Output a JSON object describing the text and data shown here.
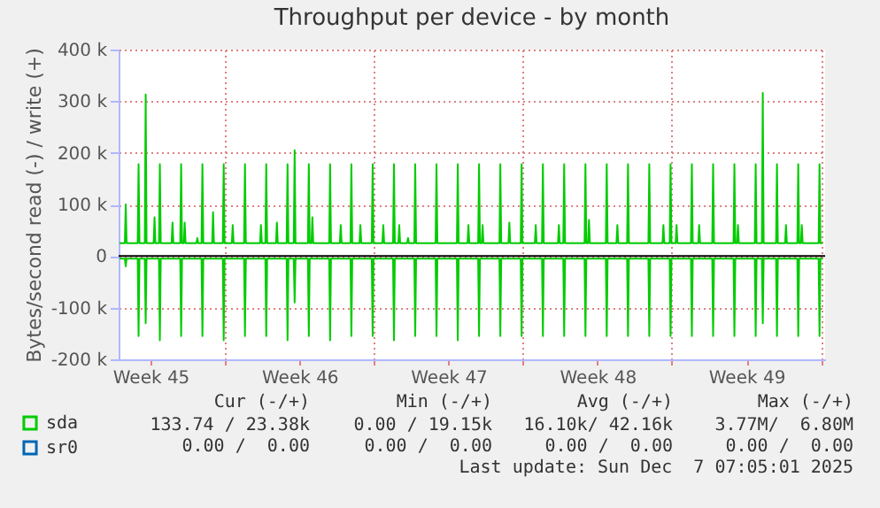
{
  "chart_data": {
    "type": "line",
    "title": "Throughput per device - by month",
    "ylabel": "Bytes/second read (-) / write (+)",
    "xlim": [
      "2025-11-05T00:00",
      "2025-12-08T04:48"
    ],
    "xticks": [
      {
        "value": "2025-11-06T12:00",
        "label": "Week 45"
      },
      {
        "value": "2025-11-10T00:00",
        "label": null
      },
      {
        "value": "2025-11-13T12:00",
        "label": "Week 46"
      },
      {
        "value": "2025-11-17T00:00",
        "label": null
      },
      {
        "value": "2025-11-20T12:00",
        "label": "Week 47"
      },
      {
        "value": "2025-11-24T00:00",
        "label": null
      },
      {
        "value": "2025-11-27T12:00",
        "label": "Week 48"
      },
      {
        "value": "2025-12-01T00:00",
        "label": null
      },
      {
        "value": "2025-12-04T12:00",
        "label": "Week 49"
      },
      {
        "value": "2025-12-08T00:00",
        "label": null
      }
    ],
    "ylim": [
      -200000,
      400000
    ],
    "yticks": [
      {
        "value": -200000,
        "label": "-200 k"
      },
      {
        "value": -100000,
        "label": "-100 k"
      },
      0,
      {
        "value": 100000,
        "label": "100 k"
      },
      {
        "value": 200000,
        "label": "200 k"
      },
      {
        "value": 300000,
        "label": "300 k"
      },
      {
        "value": 400000,
        "label": "400 k"
      }
    ],
    "grid": true,
    "legend": "bottom left",
    "line_style": "solid",
    "ref_lines": [
      {
        "axis": "y",
        "value": 0,
        "color": "#000000"
      }
    ],
    "series": [
      {
        "name": "sda",
        "color": "#00cc00",
        "x": [
          "2025-11-05T01:00",
          "2025-11-05T07:00",
          "2025-11-05T08:00",
          "2025-11-05T09:00",
          "2025-11-05T21:30",
          "2025-11-05T22:30",
          "2025-11-05T23:30",
          "2025-11-06T05:30",
          "2025-11-06T06:30",
          "2025-11-06T07:30",
          "2025-11-06T15:30",
          "2025-11-06T16:30",
          "2025-11-06T17:30",
          "2025-11-06T21:30",
          "2025-11-06T22:30",
          "2025-11-06T23:30",
          "2025-11-07T11:45",
          "2025-11-07T12:45",
          "2025-11-07T13:45",
          "2025-11-07T21:30",
          "2025-11-07T22:30",
          "2025-11-07T23:30",
          "2025-11-08T01:30",
          "2025-11-08T02:30",
          "2025-11-08T03:30",
          "2025-11-08T15:45",
          "2025-11-08T16:45",
          "2025-11-08T17:45",
          "2025-11-08T21:30",
          "2025-11-08T22:30",
          "2025-11-08T23:30",
          "2025-11-09T09:30",
          "2025-11-09T10:30",
          "2025-11-09T11:30",
          "2025-11-09T21:30",
          "2025-11-09T22:30",
          "2025-11-09T23:30",
          "2025-11-10T07:40",
          "2025-11-10T08:40",
          "2025-11-10T09:40",
          "2025-11-10T21:30",
          "2025-11-10T22:30",
          "2025-11-10T23:30",
          "2025-11-11T15:30",
          "2025-11-11T16:30",
          "2025-11-11T17:30",
          "2025-11-11T21:30",
          "2025-11-11T22:30",
          "2025-11-11T23:30",
          "2025-11-12T09:30",
          "2025-11-12T10:30",
          "2025-11-12T11:30",
          "2025-11-12T21:30",
          "2025-11-12T22:30",
          "2025-11-12T23:30",
          "2025-11-13T05:30",
          "2025-11-13T06:30",
          "2025-11-13T07:30",
          "2025-11-13T21:30",
          "2025-11-13T22:30",
          "2025-11-13T23:30",
          "2025-11-14T01:30",
          "2025-11-14T02:30",
          "2025-11-14T03:30",
          "2025-11-14T21:30",
          "2025-11-14T22:30",
          "2025-11-14T23:30",
          "2025-11-15T09:30",
          "2025-11-15T10:30",
          "2025-11-15T11:30",
          "2025-11-15T21:30",
          "2025-11-15T22:30",
          "2025-11-15T23:30",
          "2025-11-16T07:40",
          "2025-11-16T08:40",
          "2025-11-16T09:40",
          "2025-11-16T21:30",
          "2025-11-16T22:30",
          "2025-11-16T23:30",
          "2025-11-17T09:30",
          "2025-11-17T10:30",
          "2025-11-17T11:30",
          "2025-11-17T21:30",
          "2025-11-17T22:30",
          "2025-11-17T23:30",
          "2025-11-18T03:30",
          "2025-11-18T04:30",
          "2025-11-18T05:30",
          "2025-11-18T13:25",
          "2025-11-18T14:25",
          "2025-11-18T15:25",
          "2025-11-18T21:30",
          "2025-11-18T22:30",
          "2025-11-18T23:30",
          "2025-11-19T21:30",
          "2025-11-19T22:30",
          "2025-11-19T23:30",
          "2025-11-20T21:30",
          "2025-11-20T22:30",
          "2025-11-20T23:30",
          "2025-11-21T09:30",
          "2025-11-21T10:30",
          "2025-11-21T11:30",
          "2025-11-21T21:30",
          "2025-11-21T22:30",
          "2025-11-21T23:30",
          "2025-11-22T01:30",
          "2025-11-22T02:30",
          "2025-11-22T03:30",
          "2025-11-22T21:30",
          "2025-11-22T22:30",
          "2025-11-22T23:30",
          "2025-11-23T07:40",
          "2025-11-23T08:40",
          "2025-11-23T09:40",
          "2025-11-23T21:30",
          "2025-11-23T22:30",
          "2025-11-23T23:30",
          "2025-11-24T13:25",
          "2025-11-24T14:25",
          "2025-11-24T15:25",
          "2025-11-24T21:30",
          "2025-11-24T22:30",
          "2025-11-24T23:30",
          "2025-11-25T15:30",
          "2025-11-25T16:30",
          "2025-11-25T17:30",
          "2025-11-25T21:30",
          "2025-11-25T22:30",
          "2025-11-25T23:30",
          "2025-11-26T21:30",
          "2025-11-26T22:30",
          "2025-11-26T23:30",
          "2025-11-27T01:30",
          "2025-11-27T02:30",
          "2025-11-27T03:30",
          "2025-11-27T21:30",
          "2025-11-27T22:30",
          "2025-11-27T23:30",
          "2025-11-28T09:30",
          "2025-11-28T10:30",
          "2025-11-28T11:30",
          "2025-11-28T21:30",
          "2025-11-28T22:30",
          "2025-11-28T23:30",
          "2025-11-29T21:30",
          "2025-11-29T22:30",
          "2025-11-29T23:30",
          "2025-11-30T13:25",
          "2025-11-30T14:25",
          "2025-11-30T15:25",
          "2025-11-30T21:30",
          "2025-11-30T22:30",
          "2025-11-30T23:30",
          "2025-12-01T04:15",
          "2025-12-01T05:15",
          "2025-12-01T06:15",
          "2025-12-01T21:30",
          "2025-12-01T22:30",
          "2025-12-01T23:30",
          "2025-12-02T05:45",
          "2025-12-02T06:45",
          "2025-12-02T07:45",
          "2025-12-02T21:30",
          "2025-12-02T22:30",
          "2025-12-02T23:30",
          "2025-12-03T21:30",
          "2025-12-03T22:30",
          "2025-12-03T23:30",
          "2025-12-04T01:30",
          "2025-12-04T02:30",
          "2025-12-04T03:30",
          "2025-12-04T21:30",
          "2025-12-04T22:30",
          "2025-12-04T23:30",
          "2025-12-05T05:30",
          "2025-12-05T06:30",
          "2025-12-05T07:30",
          "2025-12-05T21:30",
          "2025-12-05T22:30",
          "2025-12-05T23:30",
          "2025-12-06T07:40",
          "2025-12-06T08:40",
          "2025-12-06T09:40",
          "2025-12-06T21:30",
          "2025-12-06T22:30",
          "2025-12-06T23:30",
          "2025-12-07T01:30",
          "2025-12-07T02:30",
          "2025-12-07T03:30",
          "2025-12-07T21:30",
          "2025-12-07T22:30",
          "2025-12-07T23:30",
          "2025-12-08T02:00"
        ],
        "values": [
          25000,
          25000,
          100000,
          25000,
          25000,
          178000,
          25000,
          25000,
          313000,
          25000,
          25000,
          75000,
          25000,
          25000,
          178000,
          25000,
          25000,
          65000,
          25000,
          25000,
          178000,
          25000,
          25000,
          65000,
          25000,
          25000,
          35000,
          25000,
          25000,
          178000,
          25000,
          25000,
          85000,
          25000,
          25000,
          178000,
          25000,
          25000,
          60000,
          25000,
          25000,
          178000,
          25000,
          25000,
          60000,
          25000,
          25000,
          178000,
          25000,
          25000,
          65000,
          25000,
          25000,
          178000,
          25000,
          25000,
          205000,
          25000,
          25000,
          178000,
          25000,
          25000,
          75000,
          25000,
          25000,
          178000,
          25000,
          25000,
          60000,
          25000,
          25000,
          178000,
          25000,
          25000,
          60000,
          25000,
          25000,
          178000,
          25000,
          25000,
          60000,
          25000,
          25000,
          178000,
          25000,
          25000,
          60000,
          25000,
          25000,
          35000,
          25000,
          25000,
          178000,
          25000,
          25000,
          178000,
          25000,
          25000,
          178000,
          25000,
          25000,
          60000,
          25000,
          25000,
          178000,
          25000,
          25000,
          60000,
          25000,
          25000,
          178000,
          25000,
          25000,
          65000,
          25000,
          25000,
          178000,
          25000,
          25000,
          60000,
          25000,
          25000,
          178000,
          25000,
          25000,
          60000,
          25000,
          25000,
          178000,
          25000,
          25000,
          178000,
          25000,
          25000,
          70000,
          25000,
          25000,
          178000,
          25000,
          25000,
          60000,
          25000,
          25000,
          178000,
          25000,
          25000,
          178000,
          25000,
          25000,
          60000,
          25000,
          25000,
          178000,
          25000,
          25000,
          60000,
          25000,
          25000,
          178000,
          25000,
          25000,
          60000,
          25000,
          25000,
          178000,
          25000,
          25000,
          178000,
          25000,
          25000,
          60000,
          25000,
          25000,
          178000,
          25000,
          25000,
          316000,
          25000,
          25000,
          178000,
          25000,
          25000,
          60000,
          25000,
          25000,
          178000,
          25000,
          25000,
          60000,
          25000,
          25000,
          178000,
          25000,
          25000
        ]
      },
      {
        "color": "#00cc00",
        "x": [
          "2025-11-05T01:00",
          "2025-11-05T07:00",
          "2025-11-05T08:00",
          "2025-11-05T09:00",
          "2025-11-05T21:30",
          "2025-11-05T22:30",
          "2025-11-05T23:30",
          "2025-11-06T05:30",
          "2025-11-06T06:30",
          "2025-11-06T07:30",
          "2025-11-06T21:30",
          "2025-11-06T22:30",
          "2025-11-06T23:30",
          "2025-11-07T21:30",
          "2025-11-07T22:30",
          "2025-11-07T23:30",
          "2025-11-08T21:30",
          "2025-11-08T22:30",
          "2025-11-08T23:30",
          "2025-11-09T21:30",
          "2025-11-09T22:30",
          "2025-11-09T23:30",
          "2025-11-10T21:30",
          "2025-11-10T22:30",
          "2025-11-10T23:30",
          "2025-11-11T21:30",
          "2025-11-11T22:30",
          "2025-11-11T23:30",
          "2025-11-12T21:30",
          "2025-11-12T22:30",
          "2025-11-12T23:30",
          "2025-11-13T05:30",
          "2025-11-13T06:30",
          "2025-11-13T07:30",
          "2025-11-13T21:30",
          "2025-11-13T22:30",
          "2025-11-13T23:30",
          "2025-11-14T21:30",
          "2025-11-14T22:30",
          "2025-11-14T23:30",
          "2025-11-15T21:30",
          "2025-11-15T22:30",
          "2025-11-15T23:30",
          "2025-11-16T21:30",
          "2025-11-16T22:30",
          "2025-11-16T23:30",
          "2025-11-17T21:30",
          "2025-11-17T22:30",
          "2025-11-17T23:30",
          "2025-11-18T21:30",
          "2025-11-18T22:30",
          "2025-11-18T23:30",
          "2025-11-19T21:30",
          "2025-11-19T22:30",
          "2025-11-19T23:30",
          "2025-11-20T21:30",
          "2025-11-20T22:30",
          "2025-11-20T23:30",
          "2025-11-21T21:30",
          "2025-11-21T22:30",
          "2025-11-21T23:30",
          "2025-11-22T21:30",
          "2025-11-22T22:30",
          "2025-11-22T23:30",
          "2025-11-23T21:30",
          "2025-11-23T22:30",
          "2025-11-23T23:30",
          "2025-11-24T21:30",
          "2025-11-24T22:30",
          "2025-11-24T23:30",
          "2025-11-25T21:30",
          "2025-11-25T22:30",
          "2025-11-25T23:30",
          "2025-11-26T21:30",
          "2025-11-26T22:30",
          "2025-11-26T23:30",
          "2025-11-27T21:30",
          "2025-11-27T22:30",
          "2025-11-27T23:30",
          "2025-11-28T21:30",
          "2025-11-28T22:30",
          "2025-11-28T23:30",
          "2025-11-29T21:30",
          "2025-11-29T22:30",
          "2025-11-29T23:30",
          "2025-11-30T21:30",
          "2025-11-30T22:30",
          "2025-11-30T23:30",
          "2025-12-01T21:30",
          "2025-12-01T22:30",
          "2025-12-01T23:30",
          "2025-12-02T21:30",
          "2025-12-02T22:30",
          "2025-12-02T23:30",
          "2025-12-03T21:30",
          "2025-12-03T22:30",
          "2025-12-03T23:30",
          "2025-12-04T21:30",
          "2025-12-04T22:30",
          "2025-12-04T23:30",
          "2025-12-05T05:30",
          "2025-12-05T06:30",
          "2025-12-05T07:30",
          "2025-12-05T21:30",
          "2025-12-05T22:30",
          "2025-12-05T23:30",
          "2025-12-06T21:30",
          "2025-12-06T22:30",
          "2025-12-06T23:30",
          "2025-12-07T21:30",
          "2025-12-07T22:30",
          "2025-12-07T23:30",
          "2025-12-08T02:00"
        ],
        "values": [
          -5000,
          -5000,
          -20000,
          -5000,
          -5000,
          -155000,
          -5000,
          -5000,
          -130000,
          -5000,
          -5000,
          -163000,
          -5000,
          -5000,
          -155000,
          -5000,
          -5000,
          -155000,
          -5000,
          -5000,
          -163000,
          -5000,
          -5000,
          -155000,
          -5000,
          -5000,
          -155000,
          -5000,
          -5000,
          -163000,
          -5000,
          -5000,
          -90000,
          -5000,
          -5000,
          -155000,
          -5000,
          -5000,
          -163000,
          -5000,
          -5000,
          -155000,
          -5000,
          -5000,
          -155000,
          -5000,
          -5000,
          -163000,
          -5000,
          -5000,
          -155000,
          -5000,
          -5000,
          -155000,
          -5000,
          -5000,
          -163000,
          -5000,
          -5000,
          -155000,
          -5000,
          -5000,
          -155000,
          -5000,
          -5000,
          -155000,
          -5000,
          -5000,
          -155000,
          -5000,
          -5000,
          -155000,
          -5000,
          -5000,
          -155000,
          -5000,
          -5000,
          -155000,
          -5000,
          -5000,
          -155000,
          -5000,
          -5000,
          -155000,
          -5000,
          -5000,
          -155000,
          -5000,
          -5000,
          -155000,
          -5000,
          -5000,
          -155000,
          -5000,
          -5000,
          -155000,
          -5000,
          -5000,
          -155000,
          -5000,
          -5000,
          -130000,
          -5000,
          -5000,
          -155000,
          -5000,
          -5000,
          -155000,
          -5000,
          -5000,
          -155000,
          -5000,
          -5000
        ]
      },
      {
        "name": "sr0",
        "color": "#0066b3"
      }
    ],
    "annotations": [
      "Cur (-/+)",
      "Min (-/+)",
      "Avg (-/+)",
      "Max (-/+)",
      "133.74 / 23.38k",
      "0.00 / 19.15k",
      "16.10k/ 42.16k",
      "3.77M/  6.80M",
      "0.00 /  0.00",
      "0.00 /  0.00",
      "0.00 /  0.00",
      "0.00 /  0.00",
      "Last update: Sun Dec  7 07:05:01 2025"
    ]
  }
}
